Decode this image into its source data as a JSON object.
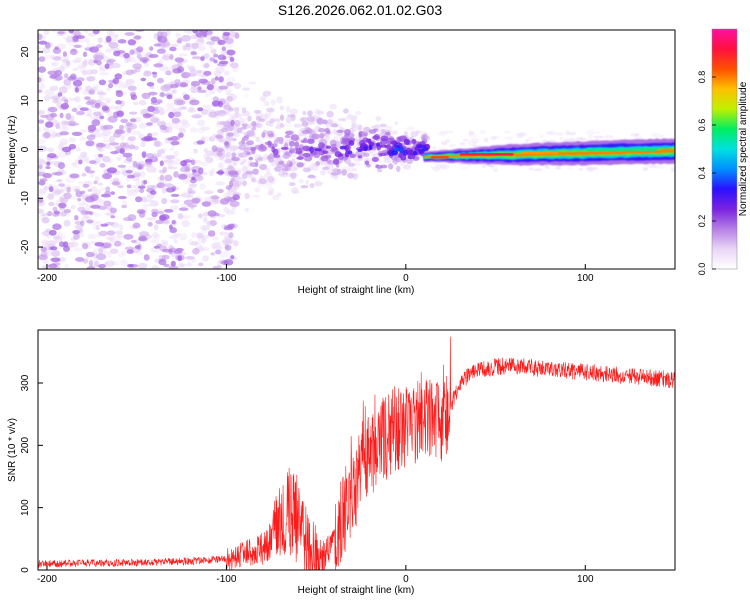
{
  "title": "S126.2026.062.01.02.G03",
  "chart_data": [
    {
      "type": "heatmap",
      "xlabel": "Height of straight line (km)",
      "ylabel": "Frequency (Hz)",
      "xlim": [
        -205,
        150
      ],
      "ylim": [
        -24.5,
        24.5
      ],
      "xticks": [
        -200,
        -100,
        0,
        100
      ],
      "yticks": [
        20,
        10,
        0,
        -10,
        -20
      ],
      "colorbar": {
        "label": "Normalized spectral amplitude",
        "range": [
          0,
          1
        ],
        "ticks": [
          "0.0",
          "0.2",
          "0.4",
          "0.6",
          "0.8"
        ],
        "colors": [
          "#ffffff",
          "#e9d6f6",
          "#b57ee6",
          "#7a22e0",
          "#2a10ff",
          "#0090ff",
          "#00e0e0",
          "#00ee60",
          "#c0f000",
          "#ffc000",
          "#ff5000",
          "#ff1040",
          "#ff10a0"
        ]
      },
      "features": {
        "noise_region_km": [
          -205,
          -100
        ],
        "transition_region_km": [
          -100,
          12
        ],
        "tone_region_km": [
          12,
          150
        ],
        "tone_frequency_hz": [
          -1.6,
          0.4
        ],
        "peak_amplitude": 0.9
      }
    },
    {
      "type": "line",
      "xlabel": "Height of straight line (km)",
      "ylabel": "SNR (10 * v/v)",
      "xlim": [
        -205,
        150
      ],
      "ylim": [
        0,
        385
      ],
      "xticks": [
        -200,
        -100,
        0,
        100
      ],
      "yticks": [
        0,
        100,
        200,
        300
      ],
      "series": [
        {
          "name": "SNR",
          "color": "#ff1a1a",
          "x": [
            -205,
            -180,
            -150,
            -120,
            -100,
            -90,
            -80,
            -75,
            -70,
            -65,
            -60,
            -55,
            -50,
            -45,
            -40,
            -35,
            -30,
            -25,
            -20,
            -15,
            -10,
            -5,
            0,
            5,
            10,
            15,
            20,
            25,
            30,
            35,
            40,
            50,
            60,
            80,
            100,
            120,
            150
          ],
          "y": [
            10,
            11,
            12,
            14,
            18,
            25,
            35,
            55,
            80,
            95,
            90,
            40,
            25,
            22,
            45,
            90,
            120,
            160,
            185,
            205,
            215,
            230,
            225,
            240,
            255,
            250,
            240,
            265,
            295,
            312,
            320,
            326,
            328,
            322,
            318,
            312,
            305
          ]
        }
      ]
    }
  ]
}
